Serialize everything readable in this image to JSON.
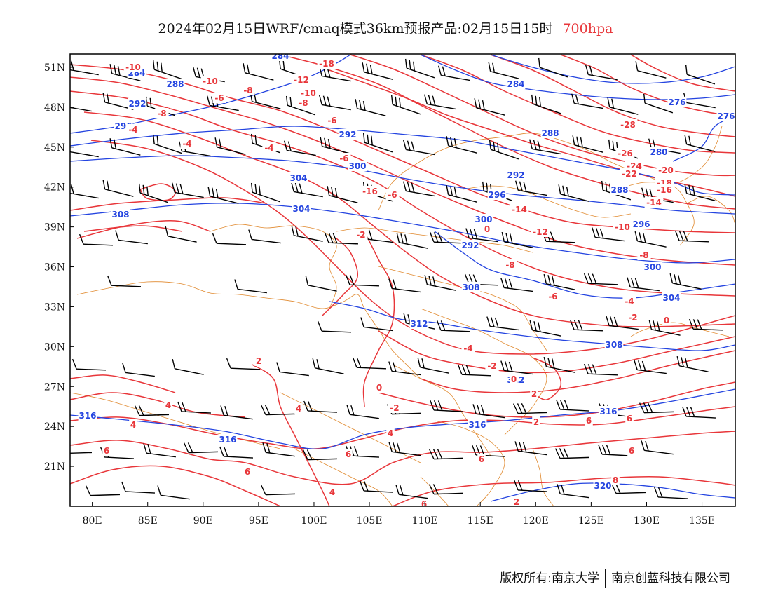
{
  "title": {
    "main": "2024年02月15日WRF/cmaq模式36km预报产品:02月15日15时",
    "level": "700hpa",
    "level_color": "#e8363a"
  },
  "colors": {
    "temperature": "#e8363a",
    "height": "#2444e0",
    "borders": "#e0882c",
    "wind": "#000000",
    "frame": "#000000"
  },
  "axes": {
    "x_ticks": [
      "80E",
      "85E",
      "90E",
      "95E",
      "100E",
      "105E",
      "110E",
      "115E",
      "120E",
      "125E",
      "130E",
      "135E"
    ],
    "y_ticks": [
      "51N",
      "48N",
      "45N",
      "42N",
      "39N",
      "36N",
      "33N",
      "30N",
      "27N",
      "24N",
      "21N"
    ],
    "x_values": [
      80,
      85,
      90,
      95,
      100,
      105,
      110,
      115,
      120,
      125,
      130,
      135
    ],
    "y_values": [
      51,
      48,
      45,
      42,
      39,
      36,
      33,
      30,
      27,
      24,
      21
    ],
    "lon_range": [
      78,
      138
    ],
    "lat_range": [
      18,
      52
    ]
  },
  "height_labels": [
    "284",
    "284",
    "288",
    "292",
    "292",
    "296",
    "300",
    "304",
    "304",
    "308",
    "300",
    "296",
    "292",
    "288",
    "284",
    "280",
    "276",
    "276",
    "288",
    "300",
    "296",
    "292",
    "304",
    "308",
    "312",
    "312",
    "308",
    "316",
    "316",
    "316",
    "316",
    "320"
  ],
  "temperature_labels": [
    "-10",
    "-10",
    "-12",
    "-10",
    "-8",
    "-8",
    "-6",
    "-8",
    "-6",
    "-4",
    "-4",
    "-6",
    "-6",
    "-2",
    "-4",
    "-18",
    "-16",
    "-14",
    "-12",
    "-28",
    "-26",
    "-24",
    "-22",
    "-20",
    "-18",
    "-16",
    "-14",
    "-10",
    "-8",
    "0",
    "-8",
    "-6",
    "-4",
    "-2",
    "0",
    "-4",
    "-2",
    "0",
    "2",
    "0",
    "-2",
    "4",
    "2",
    "4",
    "4",
    "4",
    "6",
    "6",
    "6",
    "6",
    "8",
    "6",
    "4",
    "2",
    "6",
    "6",
    "6",
    "2"
  ],
  "footer": {
    "left": "版权所有:南京大学",
    "right": "南京创蓝科技有限公司"
  }
}
